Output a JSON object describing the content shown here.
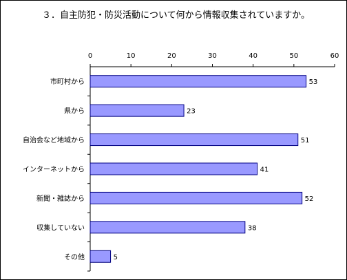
{
  "title": "３．自主防犯・防災活動について何から情報収集されていますか。",
  "chart_data": {
    "type": "bar",
    "orientation": "horizontal",
    "title": "３．自主防犯・防災活動について何から情報収集されていますか。",
    "categories": [
      "市町村から",
      "県から",
      "自治会など地域から",
      "インターネットから",
      "新聞・雑誌から",
      "収集していない",
      "その他"
    ],
    "values": [
      53,
      23,
      51,
      41,
      52,
      38,
      5
    ],
    "xlim": [
      0,
      60
    ],
    "ticks": [
      "0",
      "10",
      "20",
      "30",
      "40",
      "50",
      "60"
    ],
    "xlabel": "",
    "ylabel": "",
    "grid": false,
    "legend": "none",
    "bar_color": "#9999ff",
    "bar_edge_color": "#000080"
  }
}
